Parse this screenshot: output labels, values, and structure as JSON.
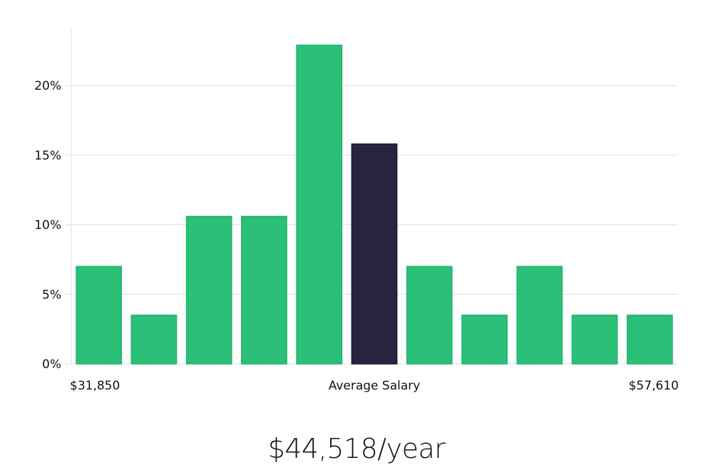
{
  "chart_data": {
    "type": "bar",
    "title": "",
    "xlabel": "Average Salary",
    "ylabel": "",
    "x_min_label": "$31,850",
    "x_max_label": "$57,610",
    "values": [
      7.0,
      3.5,
      10.6,
      10.6,
      22.9,
      15.8,
      7.0,
      3.5,
      7.0,
      3.5,
      3.5
    ],
    "highlight_index": 5,
    "ylim": [
      0,
      24.1
    ],
    "yticks": [
      0,
      5,
      10,
      15,
      20
    ],
    "ytick_labels": [
      "0%",
      "5%",
      "10%",
      "15%",
      "20%"
    ],
    "grid": true,
    "colors": {
      "bar": "#2bbf78",
      "bar_border": "#22b56f",
      "highlight": "#28233f",
      "grid": "#dddddd"
    }
  },
  "summary": {
    "average_salary": "$44,518/year"
  }
}
